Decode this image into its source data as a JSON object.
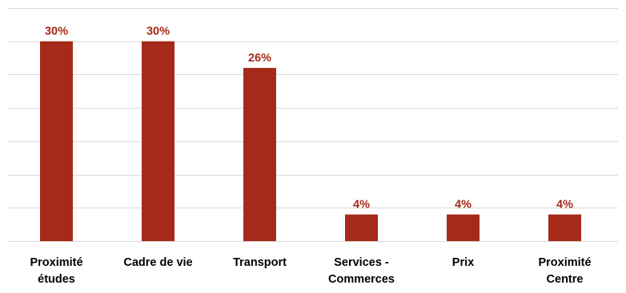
{
  "chart_data": {
    "type": "bar",
    "categories": [
      [
        "Proximité",
        "études"
      ],
      [
        "Cadre de vie"
      ],
      [
        "Transport"
      ],
      [
        "Services -",
        "Commerces"
      ],
      [
        "Prix"
      ],
      [
        "Proximité",
        "Centre"
      ]
    ],
    "values": [
      30,
      30,
      26,
      4,
      4,
      4
    ],
    "value_labels": [
      "30%",
      "30%",
      "26%",
      "4%",
      "4%",
      "4%"
    ],
    "title": "",
    "xlabel": "",
    "ylabel": "",
    "ylim": [
      0,
      35
    ],
    "grid": "horizontal",
    "legend": "none",
    "colors": {
      "bar": "#A52A1A",
      "value_label": "#A52A1A",
      "category_label": "#000000",
      "grid": "#D9D9D9"
    }
  }
}
